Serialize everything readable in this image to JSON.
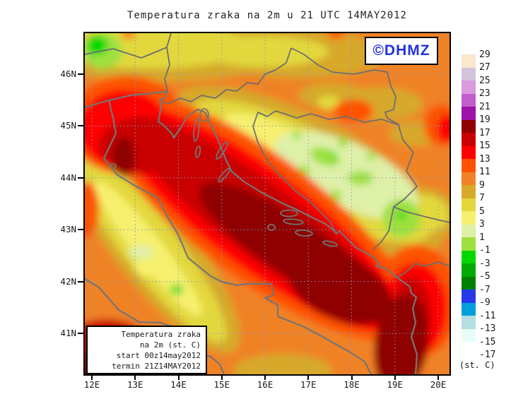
{
  "title": "Temperatura zraka na 2m u 21 UTC 14MAY2012",
  "logo": {
    "text": "©DHMZ",
    "color": "#2233dd"
  },
  "info_box": {
    "lines": [
      "Temperatura zraka",
      "na 2m (st. C)",
      "start 00z14may2012",
      "termin 21Z14MAY2012"
    ]
  },
  "axes": {
    "lat_labels": [
      "46N",
      "45N",
      "44N",
      "43N",
      "42N",
      "41N"
    ],
    "lon_labels": [
      "12E",
      "13E",
      "14E",
      "15E",
      "16E",
      "17E",
      "18E",
      "19E",
      "20E"
    ]
  },
  "legend": {
    "unit_label": "(st. C)",
    "boundary_labels": [
      "29",
      "27",
      "25",
      "23",
      "21",
      "19",
      "17",
      "15",
      "13",
      "11",
      "9",
      "7",
      "5",
      "3",
      "1",
      "-1",
      "-3",
      "-5",
      "-7",
      "-9",
      "-11",
      "-13",
      "-15",
      "-17"
    ],
    "cell_colors": [
      "#FBE6CE",
      "#D3C3DB",
      "#D89BDC",
      "#C35ECF",
      "#9E12A8",
      "#8F0000",
      "#C90000",
      "#FF0000",
      "#FD5200",
      "#F08228",
      "#D7A82A",
      "#E2D83C",
      "#F7F06E",
      "#DFF0A8",
      "#9EE040",
      "#00D800",
      "#00AA00",
      "#008000",
      "#2638E8",
      "#009FDB",
      "#B4DEE0",
      "#E8FDFA",
      "#FFFFFF"
    ],
    "cell_ranges": [
      "27..29",
      "25..27",
      "23..25",
      "21..23",
      "19..21",
      "17..19",
      "15..17",
      "13..15",
      "11..13",
      "9..11",
      "7..9",
      "5..7",
      "3..5",
      "1..3",
      "-1..1",
      "-3..-1",
      "-5..-3",
      "-7..-5",
      "-9..-7",
      "-11..-9",
      "-13..-11",
      "-15..-13",
      "-17..-15"
    ]
  },
  "map_field": {
    "variable_label": "Temperatura zraka na 2m",
    "unit": "st. C",
    "valid_time": "21 UTC 14MAY2012",
    "sea_core_temp_band": "17..19",
    "adriatic_band": "15..17",
    "continental_band": "9..13",
    "mountain_band": "-1..7"
  }
}
